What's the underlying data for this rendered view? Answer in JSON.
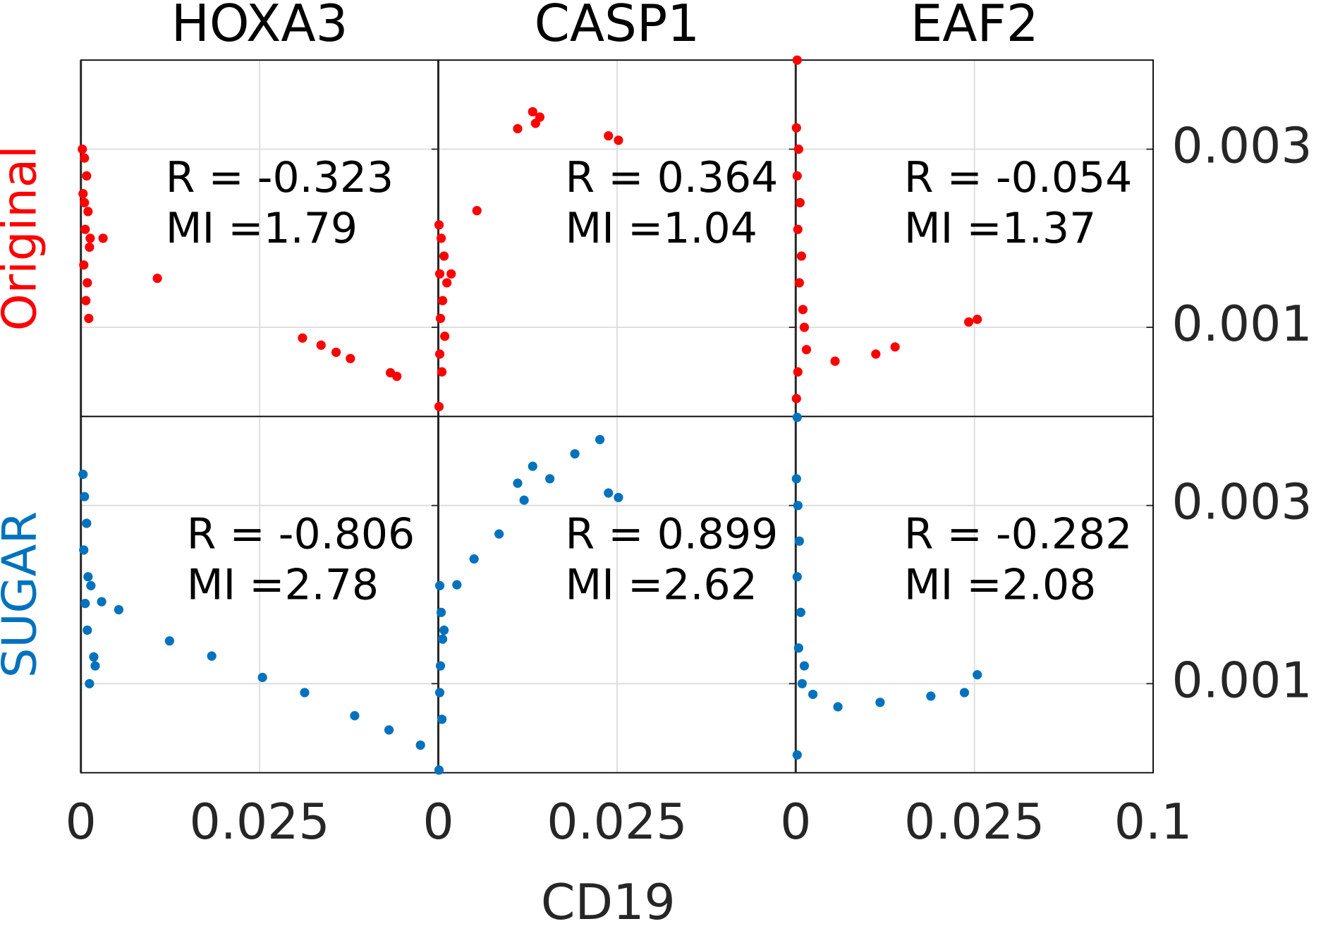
{
  "xlabel": "CD19",
  "chart_data": [
    {
      "type": "scatter",
      "title": "HOXA3",
      "ylabel": "Original",
      "color": "#ff0000",
      "annotations": [
        "R = -0.323",
        "MI =1.79"
      ],
      "xlim": [
        0,
        0.05
      ],
      "ylim": [
        0,
        0.004
      ],
      "xticks": [
        0,
        0.025
      ],
      "yticks": [
        0.001,
        0.003
      ],
      "grid": true,
      "x": [
        0.0002,
        0.0005,
        0.0008,
        0.0003,
        0.001,
        0.0006,
        0.0012,
        0.0004,
        0.0009,
        0.0007,
        0.0011,
        0.0005,
        0.0013,
        0.0031,
        0.0107,
        0.031,
        0.0336,
        0.0357,
        0.0377,
        0.0433,
        0.0442
      ],
      "y": [
        0.003,
        0.0029,
        0.0027,
        0.0025,
        0.0023,
        0.0021,
        0.0019,
        0.0017,
        0.0015,
        0.0013,
        0.0011,
        0.0024,
        0.002,
        0.002,
        0.00155,
        0.00088,
        0.0008,
        0.00072,
        0.00065,
        0.00049,
        0.00045
      ]
    },
    {
      "type": "scatter",
      "title": "CASP1",
      "color": "#ff0000",
      "annotations": [
        "R = 0.364",
        "MI =1.04"
      ],
      "xlim": [
        0,
        0.05
      ],
      "ylim": [
        0,
        0.004
      ],
      "xticks": [
        0,
        0.025
      ],
      "yticks": [
        0.001,
        0.003
      ],
      "grid": true,
      "x": [
        0.0001,
        0.0004,
        0.0008,
        0.0002,
        0.0012,
        0.0006,
        0.0018,
        0.0003,
        0.0009,
        0.0002,
        0.0005,
        0.0001,
        0.0054,
        0.0111,
        0.0132,
        0.0142,
        0.0136,
        0.0238,
        0.0252
      ],
      "y": [
        0.00215,
        0.002,
        0.0018,
        0.0016,
        0.0015,
        0.0013,
        0.0016,
        0.0011,
        0.0009,
        0.0007,
        0.0005,
        0.00011,
        0.00231,
        0.00323,
        0.00342,
        0.00336,
        0.00329,
        0.00315,
        0.0031
      ]
    },
    {
      "type": "scatter",
      "title": "EAF2",
      "color": "#ff0000",
      "annotations": [
        "R = -0.054",
        "MI =1.37"
      ],
      "xlim": [
        0,
        0.05
      ],
      "ylim": [
        0,
        0.004
      ],
      "xticks": [
        0,
        0.025,
        {
          "value": 0.05,
          "label": "0.1"
        }
      ],
      "yticks": [
        0.001,
        0.003
      ],
      "grid": true,
      "x": [
        0.0002,
        0.0001,
        0.0004,
        0.0002,
        0.0006,
        0.0003,
        0.0008,
        0.0005,
        0.001,
        0.0012,
        0.0015,
        0.0003,
        0.0001,
        0.0055,
        0.0112,
        0.0139,
        0.0242,
        0.0254
      ],
      "y": [
        0.004,
        0.00324,
        0.003,
        0.0027,
        0.0024,
        0.0021,
        0.0018,
        0.0015,
        0.0012,
        0.001,
        0.00075,
        0.0005,
        0.0002,
        0.00062,
        0.0007,
        0.00078,
        0.00106,
        0.00109
      ]
    },
    {
      "type": "scatter",
      "ylabel": "SUGAR",
      "color": "#0072bd",
      "annotations": [
        "R = -0.806",
        "MI =2.78"
      ],
      "xlim": [
        0,
        0.05
      ],
      "ylim": [
        0,
        0.004
      ],
      "xticks": [
        0,
        0.025
      ],
      "yticks": [
        0.001,
        0.003
      ],
      "grid": true,
      "x": [
        0.0003,
        0.0005,
        0.0008,
        0.0004,
        0.001,
        0.0006,
        0.0014,
        0.0009,
        0.0018,
        0.0012,
        0.002,
        0.0029,
        0.0053,
        0.0124,
        0.0183,
        0.0254,
        0.0313,
        0.0383,
        0.0431,
        0.0475
      ],
      "y": [
        0.00335,
        0.0031,
        0.0028,
        0.0025,
        0.0022,
        0.0019,
        0.0021,
        0.0016,
        0.0013,
        0.001,
        0.0012,
        0.00192,
        0.00183,
        0.00148,
        0.00131,
        0.00107,
        0.0009,
        0.00064,
        0.00048,
        0.00031
      ]
    },
    {
      "type": "scatter",
      "xlabel_here": null,
      "color": "#0072bd",
      "annotations": [
        "R = 0.899",
        "MI =2.62"
      ],
      "xlim": [
        0,
        0.05
      ],
      "ylim": [
        0,
        0.004
      ],
      "xticks": [
        0,
        0.025
      ],
      "yticks": [
        0.001,
        0.003
      ],
      "grid": true,
      "x": [
        0.0002,
        0.0004,
        0.0006,
        0.0003,
        0.0008,
        0.0002,
        0.0005,
        0.0001,
        0.0026,
        0.005,
        0.0085,
        0.012,
        0.0156,
        0.0191,
        0.0226,
        0.0111,
        0.0132,
        0.0238,
        0.0252
      ],
      "y": [
        0.0021,
        0.0018,
        0.0015,
        0.0012,
        0.0016,
        0.0009,
        0.0006,
        3e-05,
        0.00211,
        0.0024,
        0.00268,
        0.00306,
        0.0033,
        0.00358,
        0.00374,
        0.00325,
        0.00344,
        0.00314,
        0.00309
      ]
    },
    {
      "type": "scatter",
      "color": "#0072bd",
      "annotations": [
        "R = -0.282",
        "MI =2.08"
      ],
      "xlim": [
        0,
        0.05
      ],
      "ylim": [
        0,
        0.004
      ],
      "xticks": [
        0,
        0.025,
        {
          "value": 0.05,
          "label": "0.1"
        }
      ],
      "yticks": [
        0.001,
        0.003
      ],
      "grid": true,
      "x": [
        0.0002,
        0.0001,
        0.0003,
        0.0005,
        0.0002,
        0.0007,
        0.0004,
        0.0009,
        0.0012,
        0.0002,
        0.0024,
        0.0059,
        0.0118,
        0.0189,
        0.0236,
        0.0254
      ],
      "y": [
        0.00399,
        0.0033,
        0.003,
        0.0026,
        0.0022,
        0.0018,
        0.0014,
        0.001,
        0.0012,
        0.0002,
        0.00088,
        0.00074,
        0.00079,
        0.00086,
        0.0009,
        0.0011
      ]
    }
  ]
}
